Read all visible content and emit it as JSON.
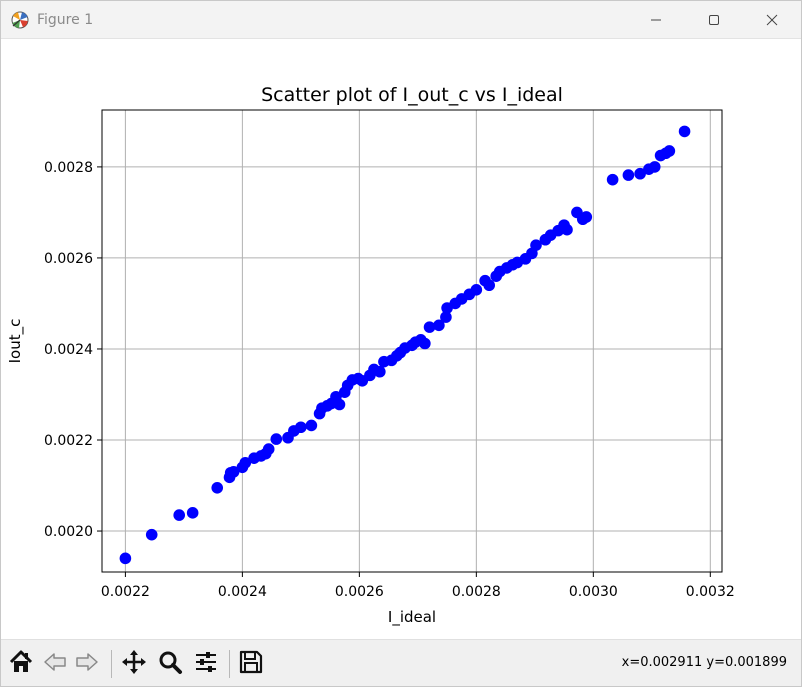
{
  "window": {
    "title": "Figure 1",
    "icon": "matplotlib-figure-icon"
  },
  "toolbar": {
    "buttons": [
      {
        "name": "home-button",
        "icon": "home-icon"
      },
      {
        "name": "back-button",
        "icon": "arrow-left-icon"
      },
      {
        "name": "forward-button",
        "icon": "arrow-right-icon"
      },
      {
        "name": "pan-button",
        "icon": "move-icon"
      },
      {
        "name": "zoom-button",
        "icon": "magnifier-icon"
      },
      {
        "name": "configure-subplots-button",
        "icon": "sliders-icon"
      },
      {
        "name": "save-button",
        "icon": "floppy-disk-icon"
      }
    ],
    "coords": "x=0.002911 y=0.001899"
  },
  "chart_data": {
    "type": "scatter",
    "title": "Scatter plot of I_out_c vs I_ideal",
    "xlabel": "I_ideal",
    "ylabel": "Iout_c",
    "xlim": [
      0.00216,
      0.00322
    ],
    "ylim": [
      0.00191,
      0.002925
    ],
    "xticks": [
      0.0022,
      0.0024,
      0.0026,
      0.0028,
      0.003,
      0.0032
    ],
    "xtick_labels": [
      "0.0022",
      "0.0024",
      "0.0026",
      "0.0028",
      "0.0030",
      "0.0032"
    ],
    "yticks": [
      0.002,
      0.0022,
      0.0024,
      0.0026,
      0.0028
    ],
    "ytick_labels": [
      "0.0020",
      "0.0022",
      "0.0024",
      "0.0026",
      "0.0028"
    ],
    "grid": true,
    "marker_color": "#0000ff",
    "points": [
      [
        0.0022,
        0.00194
      ],
      [
        0.002245,
        0.001992
      ],
      [
        0.002292,
        0.002035
      ],
      [
        0.002315,
        0.00204
      ],
      [
        0.002357,
        0.002095
      ],
      [
        0.002378,
        0.002118
      ],
      [
        0.00238,
        0.002128
      ],
      [
        0.002385,
        0.00213
      ],
      [
        0.0024,
        0.00214
      ],
      [
        0.002405,
        0.00215
      ],
      [
        0.00242,
        0.00216
      ],
      [
        0.002432,
        0.002165
      ],
      [
        0.00244,
        0.00217
      ],
      [
        0.002445,
        0.00218
      ],
      [
        0.002458,
        0.002202
      ],
      [
        0.002478,
        0.002205
      ],
      [
        0.002488,
        0.00222
      ],
      [
        0.0025,
        0.002228
      ],
      [
        0.002518,
        0.002232
      ],
      [
        0.002532,
        0.002258
      ],
      [
        0.002536,
        0.00227
      ],
      [
        0.002545,
        0.002275
      ],
      [
        0.002552,
        0.00228
      ],
      [
        0.00256,
        0.002295
      ],
      [
        0.002566,
        0.002278
      ],
      [
        0.002575,
        0.002305
      ],
      [
        0.00258,
        0.00232
      ],
      [
        0.002588,
        0.002332
      ],
      [
        0.002598,
        0.002335
      ],
      [
        0.002605,
        0.00233
      ],
      [
        0.002618,
        0.002342
      ],
      [
        0.002625,
        0.002355
      ],
      [
        0.002635,
        0.00235
      ],
      [
        0.002642,
        0.002372
      ],
      [
        0.002655,
        0.002375
      ],
      [
        0.002664,
        0.002385
      ],
      [
        0.00267,
        0.002392
      ],
      [
        0.002678,
        0.002402
      ],
      [
        0.00269,
        0.002408
      ],
      [
        0.002696,
        0.002415
      ],
      [
        0.002705,
        0.00242
      ],
      [
        0.002712,
        0.002412
      ],
      [
        0.00272,
        0.002448
      ],
      [
        0.002736,
        0.002452
      ],
      [
        0.002748,
        0.00247
      ],
      [
        0.00275,
        0.00249
      ],
      [
        0.002764,
        0.0025
      ],
      [
        0.002775,
        0.00251
      ],
      [
        0.002788,
        0.00252
      ],
      [
        0.0028,
        0.00253
      ],
      [
        0.002815,
        0.00255
      ],
      [
        0.002822,
        0.00254
      ],
      [
        0.002834,
        0.00256
      ],
      [
        0.00284,
        0.00257
      ],
      [
        0.002852,
        0.002578
      ],
      [
        0.002862,
        0.002585
      ],
      [
        0.00287,
        0.00259
      ],
      [
        0.002884,
        0.002598
      ],
      [
        0.002895,
        0.00261
      ],
      [
        0.002902,
        0.002628
      ],
      [
        0.002918,
        0.00264
      ],
      [
        0.002927,
        0.00265
      ],
      [
        0.00294,
        0.00266
      ],
      [
        0.00295,
        0.002672
      ],
      [
        0.002955,
        0.002662
      ],
      [
        0.002972,
        0.0027
      ],
      [
        0.002982,
        0.002685
      ],
      [
        0.002988,
        0.00269
      ],
      [
        0.003033,
        0.002772
      ],
      [
        0.00306,
        0.002782
      ],
      [
        0.00308,
        0.002785
      ],
      [
        0.003095,
        0.002795
      ],
      [
        0.003105,
        0.0028
      ],
      [
        0.003115,
        0.002825
      ],
      [
        0.003124,
        0.00283
      ],
      [
        0.00313,
        0.002835
      ],
      [
        0.003156,
        0.002878
      ]
    ]
  }
}
